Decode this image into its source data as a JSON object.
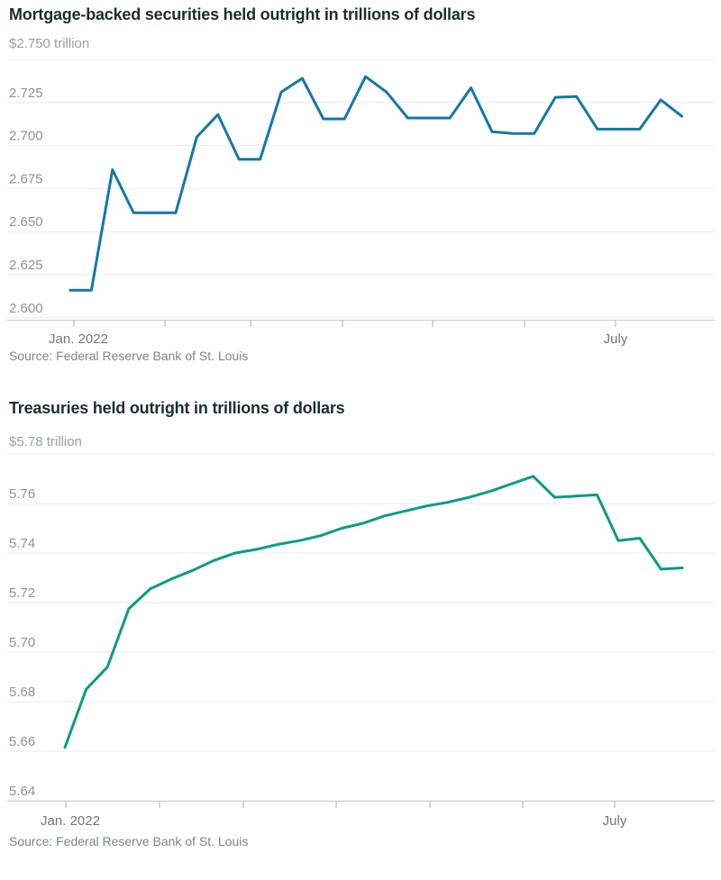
{
  "page": {
    "background": "#ffffff"
  },
  "chart_data": [
    {
      "type": "line",
      "title": "Mortgage-backed securities held outright in trillions of dollars",
      "top_axis_label": "$2.750 trillion",
      "y_tick_labels": [
        "2.725",
        "2.700",
        "2.675",
        "2.650",
        "2.625",
        "2.600"
      ],
      "ylim": [
        2.6,
        2.75
      ],
      "y_step": 0.025,
      "x_axis": {
        "first_label": "Jan. 2022",
        "last_label": "July",
        "tick_count": 7
      },
      "source": "Source: Federal Reserve Bank of St. Louis",
      "line_color": "#1478a8",
      "grid": true,
      "legend": "none",
      "values": [
        2.616,
        2.616,
        2.686,
        2.661,
        2.661,
        2.661,
        2.705,
        2.718,
        2.692,
        2.692,
        2.731,
        2.739,
        2.7155,
        2.7155,
        2.74,
        2.731,
        2.716,
        2.716,
        2.716,
        2.7335,
        2.708,
        2.707,
        2.707,
        2.728,
        2.7285,
        2.7095,
        2.7095,
        2.7095,
        2.7265,
        2.717
      ]
    },
    {
      "type": "line",
      "title": "Treasuries held outright in trillions of dollars",
      "top_axis_label": "$5.78 trillion",
      "y_tick_labels": [
        "5.76",
        "5.74",
        "5.72",
        "5.70",
        "5.68",
        "5.66",
        "5.64"
      ],
      "ylim": [
        5.64,
        5.78
      ],
      "y_step": 0.02,
      "x_axis": {
        "first_label": "Jan. 2022",
        "last_label": "July",
        "tick_count": 7
      },
      "source": "Source: Federal Reserve Bank of St. Louis",
      "line_color": "#0b9c85",
      "grid": true,
      "legend": "none",
      "values": [
        5.6615,
        5.685,
        5.694,
        5.7175,
        5.7255,
        5.7295,
        5.733,
        5.737,
        5.74,
        5.7415,
        5.7435,
        5.745,
        5.747,
        5.75,
        5.752,
        5.755,
        5.757,
        5.759,
        5.7605,
        5.7625,
        5.765,
        5.768,
        5.771,
        5.7625,
        5.763,
        5.7635,
        5.745,
        5.746,
        5.7335,
        5.734
      ]
    }
  ],
  "colors": {
    "title_text": "#1b2e2e",
    "axis_label_text": "#99a1a0",
    "tick_label_text": "#8d9493",
    "x_label_text": "#6f7a79",
    "source_text": "#7c8786",
    "gridline": "#e9ebea",
    "axis_line": "#c9cecd",
    "tick_mark": "#a8aeae"
  }
}
